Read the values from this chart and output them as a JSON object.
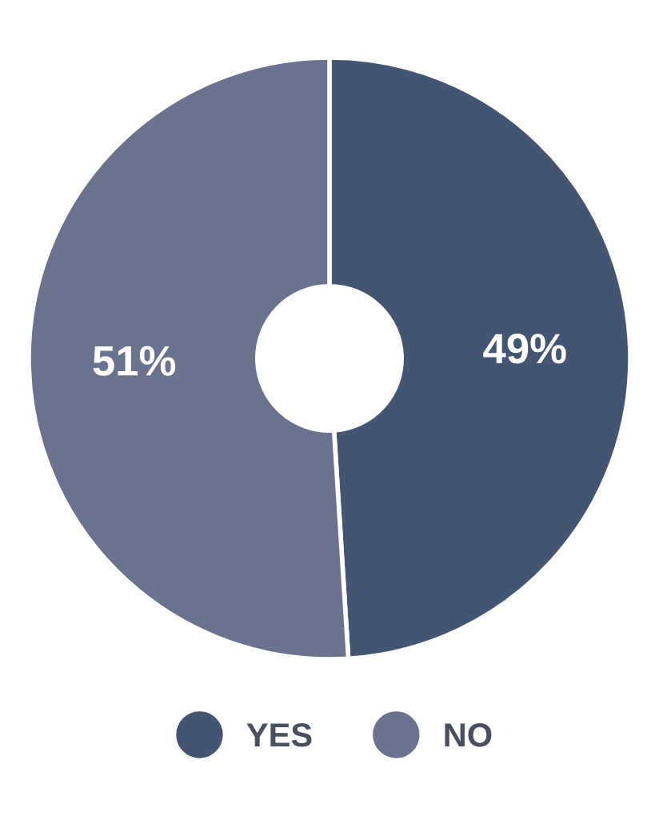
{
  "chart_data": {
    "type": "donut",
    "categories": [
      "YES",
      "NO"
    ],
    "values": [
      49,
      51
    ],
    "colors": [
      "#435573",
      "#6a738e"
    ],
    "value_labels": [
      "49%",
      "51%"
    ],
    "legend": "bottom"
  }
}
